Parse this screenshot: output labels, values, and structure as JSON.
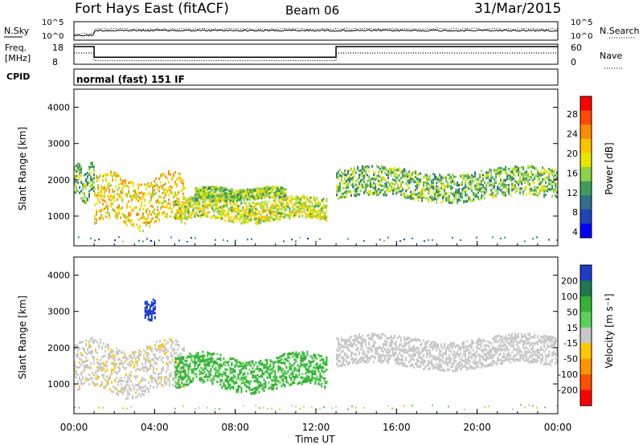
{
  "header": {
    "station": "Fort Hays East (fitACF)",
    "beam": "Beam 06",
    "date": "31/Mar/2015"
  },
  "panels": {
    "nsky_label": "N.Sky",
    "nsky_ticks": [
      "10^5",
      "10^0"
    ],
    "nsearch_label": "N.Search",
    "nsearch_ticks": [
      "10^5",
      "10^0"
    ],
    "freq_label_1": "Freq.",
    "freq_label_2": "[MHz]",
    "freq_ticks": [
      "18",
      "8"
    ],
    "nave_label": "Nave",
    "nave_ticks": [
      "60",
      "0"
    ],
    "cpid_label": "CPID",
    "cpid_text": "normal (fast) 151 IF"
  },
  "axes": {
    "ylabel": "Slant Range [km]",
    "yticks": [
      "4000",
      "3000",
      "2000",
      "1000"
    ],
    "xlabel": "Time UT",
    "xticks": [
      "00:00",
      "04:00",
      "08:00",
      "12:00",
      "16:00",
      "20:00",
      "00:00"
    ]
  },
  "colorbars": {
    "power_title": "Power [dB]",
    "power_ticks": [
      "28",
      "24",
      "20",
      "16",
      "12",
      "8",
      "4"
    ],
    "power_colors": [
      "#ff0000",
      "#ff4a00",
      "#ff8c00",
      "#ffc400",
      "#e6e600",
      "#8ed24a",
      "#3c9e5a",
      "#2f6f8f",
      "#1e44b8",
      "#0000ff"
    ],
    "velocity_title": "Velocity [m s⁻¹]",
    "velocity_ticks": [
      "200",
      "100",
      "50",
      "15",
      "-15",
      "-50",
      "-100",
      "-200"
    ],
    "velocity_colors": [
      "#1e3cc8",
      "#1e7850",
      "#32b432",
      "#5ad25a",
      "#c8c8c8",
      "#ffc800",
      "#ff9600",
      "#ff5000",
      "#ff0000"
    ]
  },
  "chart_data": {
    "type": "heatmap",
    "x_unit": "hours UT",
    "xlim": [
      0,
      24
    ],
    "y_unit": "km",
    "ylim": [
      180,
      4500
    ],
    "frequency_mhz": [
      {
        "from": 0,
        "to": 1,
        "value": 18
      },
      {
        "from": 1,
        "to": 13,
        "value": 11
      },
      {
        "from": 13,
        "to": 24,
        "value": 18
      }
    ],
    "nave": [
      {
        "from": 0,
        "to": 1,
        "value": 60
      },
      {
        "from": 1,
        "to": 13,
        "value": 30
      },
      {
        "from": 13,
        "to": 24,
        "value": 60
      }
    ],
    "power_scatter_bands": [
      {
        "t0": 0.0,
        "t1": 1.0,
        "r0": 1500,
        "r1": 2400,
        "power": 14
      },
      {
        "t0": 1.0,
        "t1": 5.5,
        "r0": 800,
        "r1": 2100,
        "power": 20
      },
      {
        "t0": 5.0,
        "t1": 12.5,
        "r0": 900,
        "r1": 1500,
        "power": 17
      },
      {
        "t0": 6.0,
        "t1": 10.5,
        "r0": 1500,
        "r1": 1800,
        "power": 15
      },
      {
        "t0": 13.0,
        "t1": 24.0,
        "r0": 1500,
        "r1": 2300,
        "power": 14
      }
    ],
    "velocity_scatter_bands": [
      {
        "t0": 0.0,
        "t1": 5.5,
        "r0": 800,
        "r1": 2100,
        "velocity": -5
      },
      {
        "t0": 5.0,
        "t1": 12.5,
        "r0": 900,
        "r1": 1800,
        "velocity": 40
      },
      {
        "t0": 13.0,
        "t1": 24.0,
        "r0": 1500,
        "r1": 2300,
        "velocity": 0
      },
      {
        "t0": 3.5,
        "t1": 4.0,
        "r0": 2800,
        "r1": 3300,
        "velocity": 200
      }
    ]
  }
}
